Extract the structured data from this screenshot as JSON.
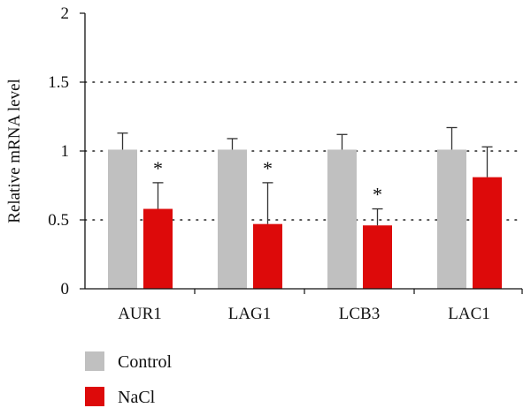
{
  "chart_data": {
    "type": "bar",
    "ylabel": "Relative mRNA level",
    "ylim": [
      0,
      2
    ],
    "yticks": [
      {
        "value": 0,
        "label": "0"
      },
      {
        "value": 0.5,
        "label": "0.5"
      },
      {
        "value": 1,
        "label": "1"
      },
      {
        "value": 1.5,
        "label": "1.5"
      },
      {
        "value": 2,
        "label": "2"
      }
    ],
    "grid": "horizontal dotted",
    "legend_position": "bottom-left",
    "categories": [
      "AUR1",
      "LAG1",
      "LCB3",
      "LAC1"
    ],
    "series": [
      {
        "name": "Control",
        "color": "#c0c0c0",
        "values": [
          1.01,
          1.01,
          1.01,
          1.01
        ],
        "errors": [
          0.12,
          0.08,
          0.11,
          0.16
        ],
        "significant": [
          false,
          false,
          false,
          false
        ]
      },
      {
        "name": "NaCl",
        "color": "#dd0a0a",
        "values": [
          0.58,
          0.47,
          0.46,
          0.81
        ],
        "errors": [
          0.19,
          0.3,
          0.12,
          0.22
        ],
        "significant": [
          true,
          true,
          true,
          false
        ]
      }
    ],
    "significance_marker": "*"
  }
}
